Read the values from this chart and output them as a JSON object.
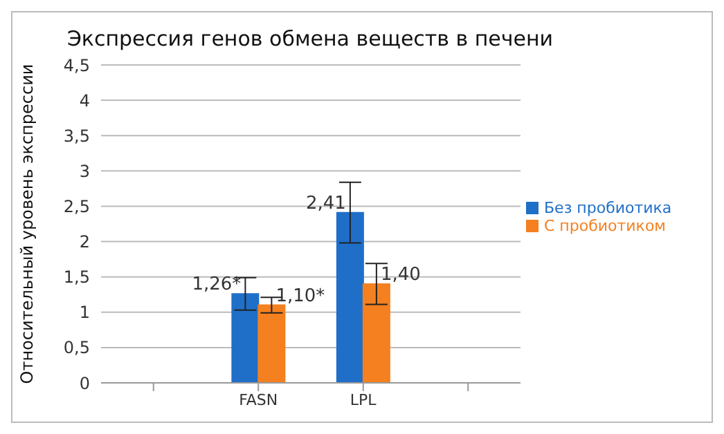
{
  "chart_data": {
    "type": "bar",
    "title": "Экспрессия генов обмена веществ в печени",
    "ylabel": "Относительный уровень экспрессии",
    "categories": [
      null,
      "FASN",
      "LPL",
      null
    ],
    "series": [
      {
        "name": "Без пробиотика",
        "color": "#1f6fc9",
        "values": [
          null,
          1.26,
          2.41,
          null
        ],
        "errors": [
          null,
          0.23,
          0.43,
          null
        ],
        "value_labels": [
          null,
          "1,26*",
          "2,41",
          null
        ]
      },
      {
        "name": "С пробиотиком",
        "color": "#f5801f",
        "values": [
          null,
          1.1,
          1.4,
          null
        ],
        "errors": [
          null,
          0.11,
          0.29,
          null
        ],
        "value_labels": [
          null,
          "1,10*",
          "1,40",
          null
        ]
      }
    ],
    "ylim": [
      0,
      4.5
    ],
    "yticks": [
      0,
      {
        "value": 0.5,
        "label": "0,5"
      },
      1,
      {
        "value": 1.5,
        "label": "1,5"
      },
      2,
      {
        "value": 2.5,
        "label": "2,5"
      },
      3,
      {
        "value": 3.5,
        "label": "3,5"
      },
      4,
      {
        "value": 4.5,
        "label": "4,5"
      }
    ],
    "grid": "y",
    "legend": "right"
  }
}
